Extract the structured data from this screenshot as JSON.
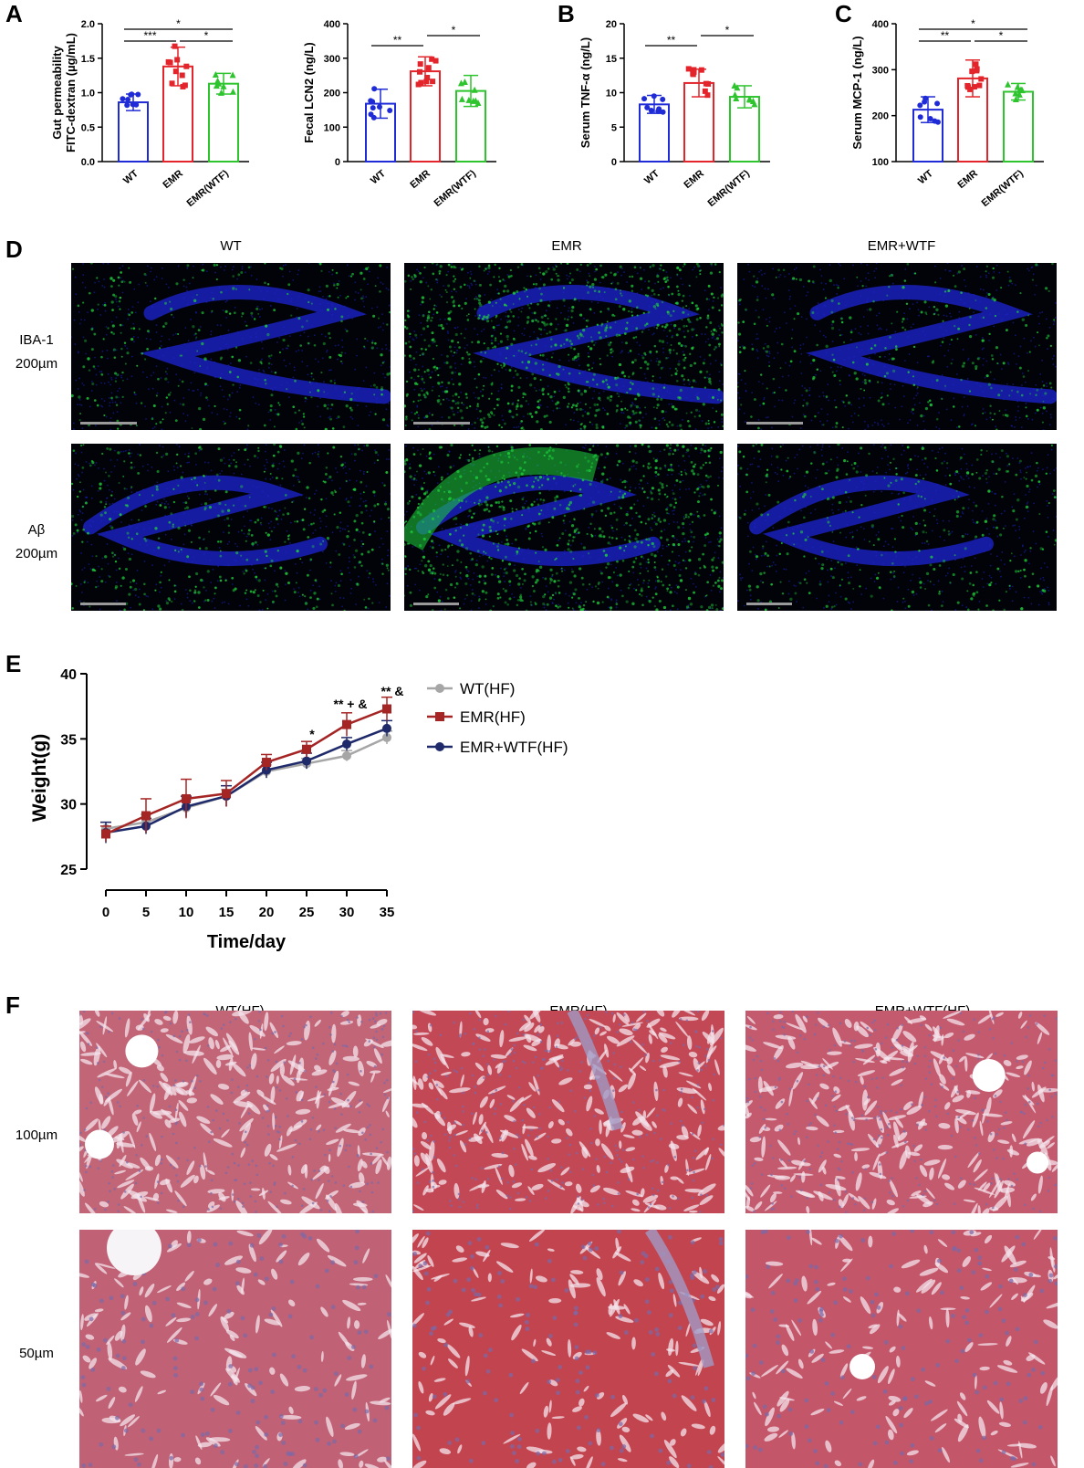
{
  "panels": {
    "A": "A",
    "B": "B",
    "C": "C",
    "D": "D",
    "E": "E",
    "F": "F"
  },
  "colors": {
    "wt": "#1f2bd6",
    "emr": "#e3242b",
    "wtf": "#2ec42e",
    "line_wt": "#a6a6a6",
    "line_emr": "#a52525",
    "line_wtf": "#1f2a6b",
    "nucleus": "#1c23c8",
    "stain_green": "#1ed23c",
    "liver": "#c9586a"
  },
  "chart_data": [
    {
      "id": "gut-permeability",
      "type": "bar",
      "ylabel": "Gut permeability FITC-dextran (µg/mL)",
      "ylabel_lines": [
        "Gut permeability",
        "FITC-dextran (µg/mL)"
      ],
      "ylim": [
        0,
        2.0
      ],
      "yticks": [
        "0.0",
        "0.5",
        "1.0",
        "1.5",
        "2.0"
      ],
      "categories": [
        "WT",
        "EMR",
        "EMR(WTF)"
      ],
      "values": [
        0.86,
        1.38,
        1.13
      ],
      "errors": [
        0.12,
        0.28,
        0.15
      ],
      "significance": [
        {
          "from": 0,
          "to": 2,
          "label": "*"
        },
        {
          "from": 0,
          "to": 1,
          "label": "***"
        },
        {
          "from": 1,
          "to": 2,
          "label": "*"
        }
      ]
    },
    {
      "id": "fecal-lcn2",
      "type": "bar",
      "ylabel": "Fecal LCN2 (ng/L)",
      "ylabel_lines": [
        "Fecal LCN2 (ng/L)"
      ],
      "ylim": [
        0,
        400
      ],
      "yticks": [
        "0",
        "100",
        "200",
        "300",
        "400"
      ],
      "categories": [
        "WT",
        "EMR",
        "EMR(WTF)"
      ],
      "values": [
        168,
        262,
        205
      ],
      "errors": [
        42,
        42,
        45
      ],
      "significance": [
        {
          "from": 0,
          "to": 1,
          "label": "**"
        },
        {
          "from": 1,
          "to": 2,
          "label": "*"
        }
      ]
    },
    {
      "id": "serum-tnf",
      "type": "bar",
      "ylabel": "Serum TNF-α (ng/L)",
      "ylabel_lines": [
        "Serum TNF-α (ng/L)"
      ],
      "ylim": [
        0,
        20
      ],
      "yticks": [
        "0",
        "5",
        "10",
        "15",
        "20"
      ],
      "categories": [
        "WT",
        "EMR",
        "EMR(WTF)"
      ],
      "values": [
        8.3,
        11.4,
        9.4
      ],
      "errors": [
        1.3,
        2.0,
        1.6
      ],
      "significance": [
        {
          "from": 0,
          "to": 1,
          "label": "**"
        },
        {
          "from": 1,
          "to": 2,
          "label": "*"
        }
      ]
    },
    {
      "id": "serum-mcp1",
      "type": "bar",
      "ylabel": "Serum MCP-1 (ng/L)",
      "ylabel_lines": [
        "Serum MCP-1 (ng/L)"
      ],
      "ylim": [
        100,
        400
      ],
      "yticks": [
        "100",
        "200",
        "300",
        "400"
      ],
      "categories": [
        "WT",
        "EMR",
        "EMR(WTF)"
      ],
      "values": [
        213,
        281,
        252
      ],
      "errors": [
        28,
        40,
        18
      ],
      "significance": [
        {
          "from": 0,
          "to": 2,
          "label": "*"
        },
        {
          "from": 0,
          "to": 1,
          "label": "**"
        },
        {
          "from": 1,
          "to": 2,
          "label": "*"
        }
      ]
    },
    {
      "id": "weight",
      "type": "line",
      "xlabel": "Time/day",
      "ylabel": "Weight(g)",
      "xlim": [
        0,
        35
      ],
      "ylim": [
        25,
        40
      ],
      "x": [
        0,
        5,
        10,
        15,
        20,
        25,
        30,
        35
      ],
      "xticks": [
        "0",
        "5",
        "10",
        "15",
        "20",
        "25",
        "30",
        "35"
      ],
      "yticks": [
        "25",
        "30",
        "35",
        "40"
      ],
      "legend_position": "top-right",
      "series": [
        {
          "name": "WT(HF)",
          "values": [
            28.1,
            28.6,
            29.7,
            30.6,
            32.5,
            33.1,
            33.7,
            35.1
          ],
          "errors": [
            0.5,
            0.6,
            0.6,
            0.5,
            0.5,
            0.4,
            0.4,
            0.5
          ]
        },
        {
          "name": "EMR(HF)",
          "values": [
            27.7,
            29.1,
            30.4,
            30.8,
            33.2,
            34.2,
            36.1,
            37.3
          ],
          "errors": [
            0.6,
            1.3,
            1.5,
            1.0,
            0.6,
            0.6,
            0.9,
            0.9
          ]
        },
        {
          "name": "EMR+WTF(HF)",
          "values": [
            27.8,
            28.3,
            29.8,
            30.6,
            32.6,
            33.3,
            34.6,
            35.8
          ],
          "errors": [
            0.8,
            0.6,
            0.8,
            0.8,
            0.6,
            0.6,
            0.5,
            0.6
          ]
        }
      ],
      "annotations": [
        {
          "x": 25,
          "label": "*"
        },
        {
          "x": 30,
          "label": "** + &"
        },
        {
          "x": 35,
          "label": "** &"
        }
      ]
    }
  ],
  "panel_d": {
    "columns": [
      "WT",
      "EMR",
      "EMR+WTF"
    ],
    "rows": [
      {
        "label": "IBA-1",
        "scale": "200µm"
      },
      {
        "label": "Aβ",
        "scale": "200µm"
      }
    ]
  },
  "panel_f": {
    "columns": [
      "WT(HF)",
      "EMR(HF)",
      "EMR+WTF(HF)"
    ],
    "rows": [
      {
        "scale": "100µm"
      },
      {
        "scale": "50µm"
      }
    ]
  }
}
